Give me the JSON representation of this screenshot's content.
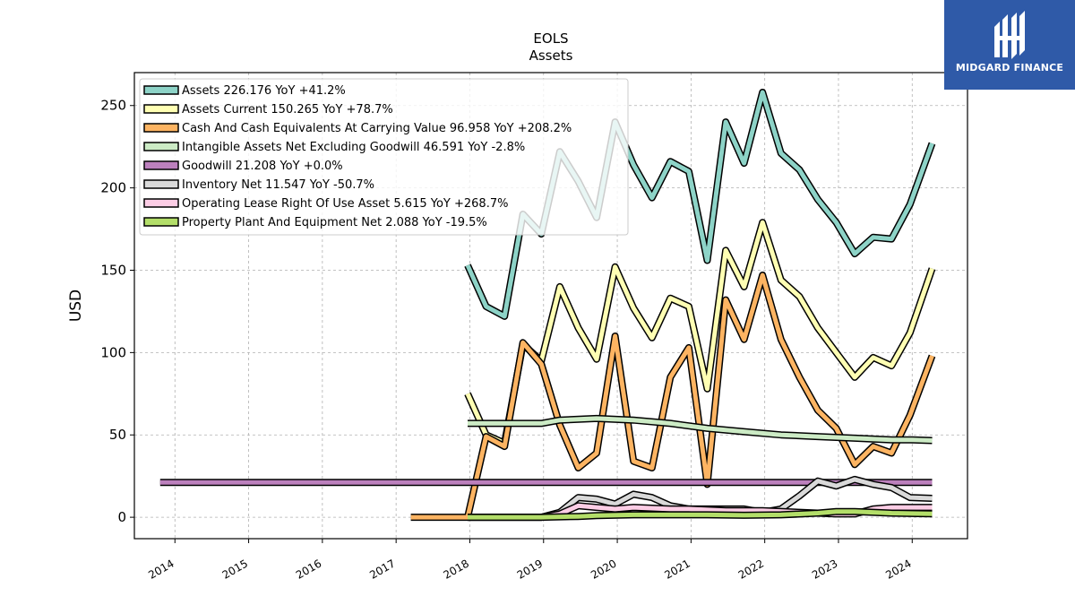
{
  "brand": {
    "name": "MIDGARD FINANCE",
    "color": "#2f5aa8"
  },
  "chart_data": {
    "type": "line",
    "title": "EOLS",
    "subtitle": "Assets",
    "ylabel": "USD",
    "xlabel": "",
    "ylim": [
      -13,
      270
    ],
    "xlim": [
      2013.45,
      2024.75
    ],
    "yticks": [
      0,
      50,
      100,
      150,
      200,
      250
    ],
    "xticks": [
      2014,
      2015,
      2016,
      2017,
      2018,
      2019,
      2020,
      2021,
      2022,
      2023,
      2024
    ],
    "grid": true,
    "legend_position": "top-left",
    "series": [
      {
        "name": "Assets  226.176 YoY +41.2%",
        "color": "#8dd3c7",
        "points": [
          [
            2017.97,
            153
          ],
          [
            2018.22,
            128
          ],
          [
            2018.47,
            122
          ],
          [
            2018.72,
            184
          ],
          [
            2018.97,
            172
          ],
          [
            2019.22,
            222
          ],
          [
            2019.47,
            204
          ],
          [
            2019.72,
            182
          ],
          [
            2019.97,
            240
          ],
          [
            2020.22,
            214
          ],
          [
            2020.47,
            194
          ],
          [
            2020.72,
            216
          ],
          [
            2020.97,
            210
          ],
          [
            2021.22,
            156
          ],
          [
            2021.47,
            240
          ],
          [
            2021.72,
            215
          ],
          [
            2021.97,
            258
          ],
          [
            2022.22,
            221
          ],
          [
            2022.47,
            211
          ],
          [
            2022.72,
            193
          ],
          [
            2022.97,
            179
          ],
          [
            2023.22,
            160
          ],
          [
            2023.47,
            170
          ],
          [
            2023.72,
            169
          ],
          [
            2023.97,
            190
          ],
          [
            2024.27,
            227
          ]
        ]
      },
      {
        "name": "Assets Current  150.265 YoY +78.7%",
        "color": "#ffffb3",
        "points": [
          [
            2017.97,
            75
          ],
          [
            2018.22,
            50
          ],
          [
            2018.47,
            45
          ],
          [
            2018.72,
            105
          ],
          [
            2018.97,
            95
          ],
          [
            2019.22,
            140
          ],
          [
            2019.47,
            115
          ],
          [
            2019.72,
            96
          ],
          [
            2019.97,
            152
          ],
          [
            2020.22,
            127
          ],
          [
            2020.47,
            109
          ],
          [
            2020.72,
            133
          ],
          [
            2020.97,
            128
          ],
          [
            2021.22,
            78
          ],
          [
            2021.47,
            162
          ],
          [
            2021.72,
            140
          ],
          [
            2021.97,
            179
          ],
          [
            2022.22,
            144
          ],
          [
            2022.47,
            134
          ],
          [
            2022.72,
            115
          ],
          [
            2022.97,
            100
          ],
          [
            2023.22,
            85
          ],
          [
            2023.47,
            97
          ],
          [
            2023.72,
            92
          ],
          [
            2023.97,
            112
          ],
          [
            2024.27,
            151
          ]
        ]
      },
      {
        "name": "Cash And Cash Equivalents At Carrying Value  96.958 YoY +208.2%",
        "color": "#fdb462",
        "points": [
          [
            2017.2,
            0
          ],
          [
            2017.97,
            0
          ],
          [
            2018.22,
            49
          ],
          [
            2018.47,
            43
          ],
          [
            2018.72,
            106
          ],
          [
            2018.97,
            93
          ],
          [
            2019.22,
            56
          ],
          [
            2019.47,
            30
          ],
          [
            2019.72,
            39
          ],
          [
            2019.97,
            110
          ],
          [
            2020.22,
            34
          ],
          [
            2020.47,
            30
          ],
          [
            2020.72,
            85
          ],
          [
            2020.97,
            103
          ],
          [
            2021.22,
            20
          ],
          [
            2021.47,
            132
          ],
          [
            2021.72,
            108
          ],
          [
            2021.97,
            147
          ],
          [
            2022.22,
            108
          ],
          [
            2022.47,
            85
          ],
          [
            2022.72,
            65
          ],
          [
            2022.97,
            54
          ],
          [
            2023.22,
            32
          ],
          [
            2023.47,
            43
          ],
          [
            2023.72,
            39
          ],
          [
            2023.97,
            62
          ],
          [
            2024.27,
            98
          ]
        ]
      },
      {
        "name": "Intangible Assets Net Excluding Goodwill  46.591 YoY -2.8%",
        "color": "#ccebc5",
        "points": [
          [
            2017.97,
            57
          ],
          [
            2018.47,
            57
          ],
          [
            2018.97,
            57
          ],
          [
            2019.22,
            59
          ],
          [
            2019.72,
            60
          ],
          [
            2020.22,
            59
          ],
          [
            2020.72,
            57
          ],
          [
            2021.22,
            54
          ],
          [
            2021.72,
            52
          ],
          [
            2022.22,
            50
          ],
          [
            2022.72,
            49
          ],
          [
            2023.22,
            48
          ],
          [
            2023.72,
            47
          ],
          [
            2024.0,
            47
          ],
          [
            2024.27,
            46.6
          ]
        ]
      },
      {
        "name": "Goodwill  21.208 YoY +0.0%",
        "color": "#bc80bd",
        "points": [
          [
            2013.8,
            21.2
          ],
          [
            2024.27,
            21.2
          ]
        ]
      },
      {
        "name": "Inventory Net  11.547 YoY -50.7%",
        "color": "#d9d9d9",
        "points": [
          [
            2017.97,
            0
          ],
          [
            2018.97,
            0
          ],
          [
            2019.22,
            3
          ],
          [
            2019.47,
            12
          ],
          [
            2019.72,
            11
          ],
          [
            2019.97,
            8
          ],
          [
            2020.22,
            14
          ],
          [
            2020.47,
            12
          ],
          [
            2020.72,
            7
          ],
          [
            2020.97,
            5
          ],
          [
            2021.22,
            5
          ],
          [
            2021.72,
            5
          ],
          [
            2021.97,
            3
          ],
          [
            2022.22,
            5
          ],
          [
            2022.47,
            13
          ],
          [
            2022.72,
            22
          ],
          [
            2022.97,
            19
          ],
          [
            2023.22,
            23
          ],
          [
            2023.47,
            20
          ],
          [
            2023.72,
            18
          ],
          [
            2023.97,
            12
          ],
          [
            2024.27,
            11.5
          ]
        ]
      },
      {
        "name": "Operating Lease Right Of Use Asset  5.615 YoY +268.7%",
        "color": "#fccde5",
        "points": [
          [
            2017.97,
            0
          ],
          [
            2018.97,
            0
          ],
          [
            2019.22,
            2
          ],
          [
            2019.47,
            7
          ],
          [
            2019.72,
            6
          ],
          [
            2019.97,
            5
          ],
          [
            2020.22,
            6
          ],
          [
            2020.72,
            5
          ],
          [
            2020.97,
            5
          ],
          [
            2021.47,
            4
          ],
          [
            2021.97,
            4
          ],
          [
            2022.47,
            3
          ],
          [
            2022.97,
            2
          ],
          [
            2023.22,
            2
          ],
          [
            2023.47,
            5
          ],
          [
            2023.72,
            6
          ],
          [
            2023.97,
            6
          ],
          [
            2024.27,
            6
          ]
        ]
      },
      {
        "name": "Property Plant And Equipment Net  2.088 YoY -19.5%",
        "color": "#b3de69",
        "points": [
          [
            2017.97,
            0
          ],
          [
            2018.47,
            0
          ],
          [
            2018.97,
            0
          ],
          [
            2019.47,
            0.5
          ],
          [
            2019.72,
            1
          ],
          [
            2020.22,
            1.5
          ],
          [
            2020.72,
            1.5
          ],
          [
            2021.22,
            1.5
          ],
          [
            2021.72,
            1.2
          ],
          [
            2022.22,
            1.5
          ],
          [
            2022.72,
            2.5
          ],
          [
            2022.97,
            3.5
          ],
          [
            2023.22,
            3.5
          ],
          [
            2023.72,
            2.5
          ],
          [
            2024.27,
            2.1
          ]
        ]
      }
    ]
  }
}
